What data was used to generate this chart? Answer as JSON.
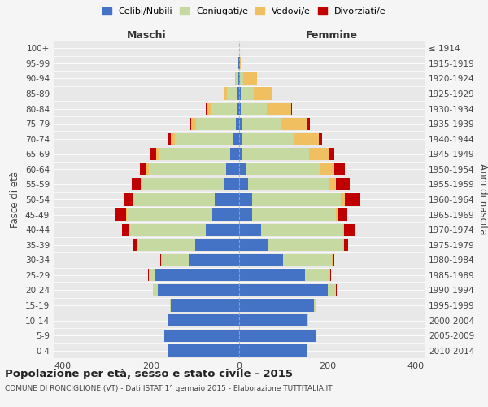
{
  "age_groups": [
    "0-4",
    "5-9",
    "10-14",
    "15-19",
    "20-24",
    "25-29",
    "30-34",
    "35-39",
    "40-44",
    "45-49",
    "50-54",
    "55-59",
    "60-64",
    "65-69",
    "70-74",
    "75-79",
    "80-84",
    "85-89",
    "90-94",
    "95-99",
    "100+"
  ],
  "birth_years": [
    "2010-2014",
    "2005-2009",
    "2000-2004",
    "1995-1999",
    "1990-1994",
    "1985-1989",
    "1980-1984",
    "1975-1979",
    "1970-1974",
    "1965-1969",
    "1960-1964",
    "1955-1959",
    "1950-1954",
    "1945-1949",
    "1940-1944",
    "1935-1939",
    "1930-1934",
    "1925-1929",
    "1920-1924",
    "1915-1919",
    "≤ 1914"
  ],
  "colors": {
    "celibe": "#4472C4",
    "coniugato": "#C5D9A0",
    "vedovo": "#F0C060",
    "divorziato": "#C00000"
  },
  "maschi": {
    "celibe": [
      160,
      170,
      160,
      155,
      185,
      190,
      115,
      100,
      75,
      60,
      55,
      35,
      30,
      20,
      15,
      8,
      5,
      3,
      2,
      1,
      0
    ],
    "coniugato": [
      0,
      0,
      0,
      2,
      10,
      15,
      60,
      130,
      175,
      195,
      185,
      185,
      175,
      160,
      130,
      90,
      60,
      25,
      5,
      1,
      0
    ],
    "vedovo": [
      0,
      0,
      0,
      0,
      0,
      0,
      1,
      1,
      1,
      1,
      2,
      3,
      5,
      8,
      10,
      10,
      8,
      5,
      3,
      0,
      0
    ],
    "divorziato": [
      0,
      0,
      0,
      0,
      1,
      2,
      3,
      8,
      15,
      25,
      20,
      20,
      15,
      15,
      8,
      5,
      2,
      1,
      0,
      0,
      0
    ]
  },
  "femmine": {
    "nubile": [
      155,
      175,
      155,
      170,
      200,
      150,
      100,
      65,
      50,
      30,
      30,
      20,
      15,
      8,
      5,
      5,
      3,
      3,
      2,
      1,
      0
    ],
    "coniugata": [
      0,
      0,
      1,
      5,
      20,
      55,
      110,
      170,
      185,
      190,
      200,
      185,
      170,
      150,
      120,
      90,
      60,
      30,
      8,
      1,
      0
    ],
    "vedova": [
      0,
      0,
      0,
      0,
      0,
      1,
      1,
      2,
      3,
      5,
      10,
      15,
      30,
      45,
      55,
      60,
      55,
      40,
      30,
      1,
      0
    ],
    "divorziata": [
      0,
      0,
      0,
      0,
      1,
      2,
      5,
      10,
      25,
      20,
      35,
      30,
      25,
      12,
      8,
      5,
      2,
      1,
      0,
      0,
      0
    ]
  },
  "title": "Popolazione per età, sesso e stato civile - 2015",
  "subtitle": "COMUNE DI RONCIGLIONE (VT) - Dati ISTAT 1° gennaio 2015 - Elaborazione TUTTITALIA.IT",
  "xlabel_left": "Maschi",
  "xlabel_right": "Femmine",
  "ylabel_left": "Fasce di età",
  "ylabel_right": "Anni di nascita",
  "xlim": 420,
  "bg_color": "#f5f5f5",
  "plot_bg": "#e8e8e8",
  "legend_labels": [
    "Celibi/Nubili",
    "Coniugati/e",
    "Vedovi/e",
    "Divorziati/e"
  ]
}
